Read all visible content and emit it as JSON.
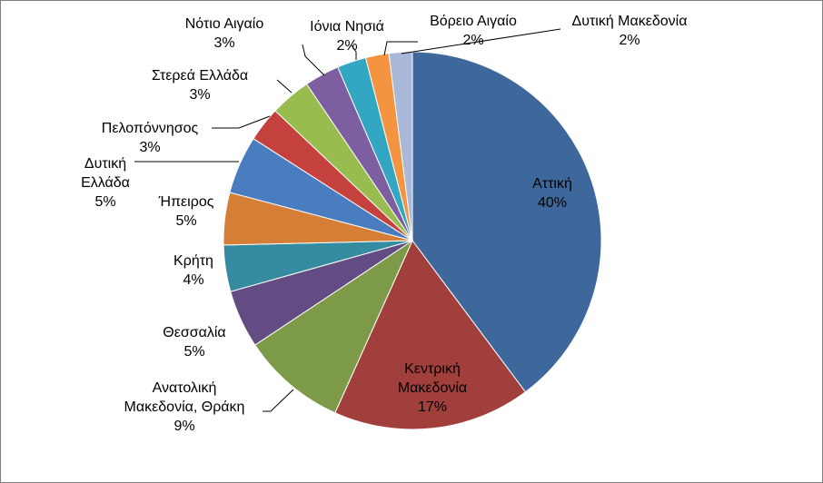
{
  "chart_data": {
    "type": "pie",
    "title": "",
    "start_angle_deg": 0,
    "direction": "clockwise",
    "slices": [
      {
        "label": [
          "Αττική"
        ],
        "pct_text": "40%",
        "value": 40.0,
        "color": "#3E689C"
      },
      {
        "label": [
          "Κεντρική",
          "Μακεδονία"
        ],
        "pct_text": "17%",
        "value": 17.0,
        "color": "#A03F3C"
      },
      {
        "label": [
          "Ανατολική",
          "Μακεδονία, Θράκη"
        ],
        "pct_text": "9%",
        "value": 9.0,
        "color": "#7D9A48"
      },
      {
        "label": [
          "Θεσσαλία"
        ],
        "pct_text": "5%",
        "value": 5.0,
        "color": "#634C83"
      },
      {
        "label": [
          "Κρήτη"
        ],
        "pct_text": "4%",
        "value": 4.0,
        "color": "#358BA0"
      },
      {
        "label": [
          "Ήπειρος"
        ],
        "pct_text": "5%",
        "value": 4.5,
        "color": "#D47E36"
      },
      {
        "label": [
          "Δυτική",
          "Ελλάδα"
        ],
        "pct_text": "5%",
        "value": 5.0,
        "color": "#4A7DC0"
      },
      {
        "label": [
          "Πελοπόννησος"
        ],
        "pct_text": "3%",
        "value": 3.0,
        "color": "#C5413E"
      },
      {
        "label": [
          "Στερεά Ελλάδα"
        ],
        "pct_text": "3%",
        "value": 3.5,
        "color": "#98BC4E"
      },
      {
        "label": [
          "Νότιο Αιγαίο"
        ],
        "pct_text": "3%",
        "value": 3.0,
        "color": "#7D5EA0"
      },
      {
        "label": [
          "Ιόνια Νησιά"
        ],
        "pct_text": "2%",
        "value": 2.5,
        "color": "#33A7C1"
      },
      {
        "label": [
          "Βόρειο Αιγαίο"
        ],
        "pct_text": "2%",
        "value": 2.0,
        "color": "#F59440"
      },
      {
        "label": [
          "Δυτική Μακεδονία"
        ],
        "pct_text": "2%",
        "value": 2.0,
        "color": "#A9B8D8"
      }
    ]
  }
}
